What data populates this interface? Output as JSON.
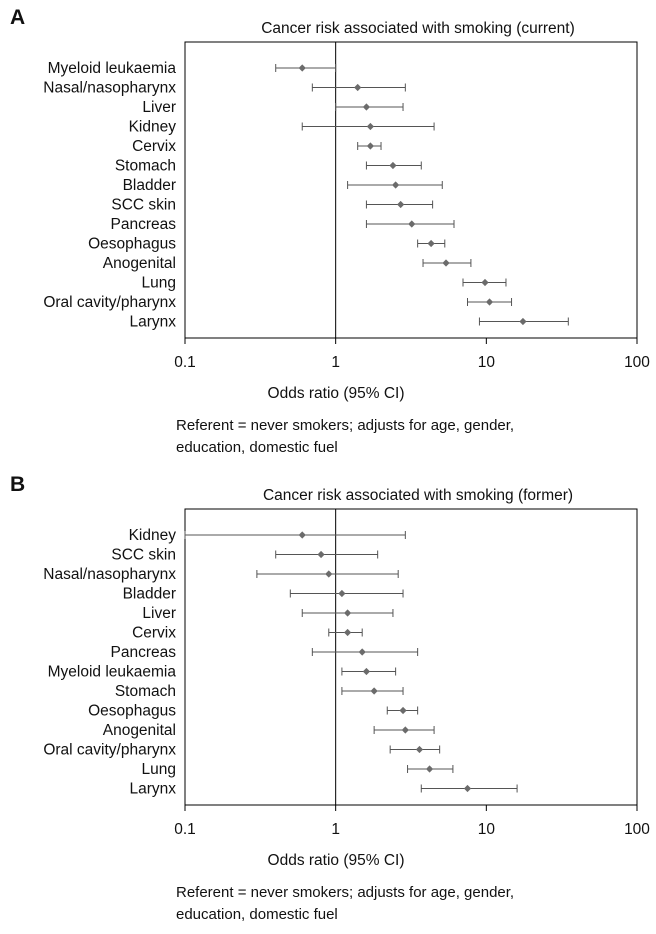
{
  "chart_data": [
    {
      "type": "scatter",
      "panel": "A",
      "title": "Cancer risk associated with smoking (current)",
      "xlabel": "Odds ratio (95% CI)",
      "note": "Referent = never smokers; adjusts for age, gender, education, domestic fuel",
      "xscale": "log",
      "xlim": [
        0.1,
        100
      ],
      "xticks": [
        0.1,
        1,
        10,
        100
      ],
      "xtick_labels": [
        "0.1",
        "1",
        "10",
        "100"
      ],
      "reference_line": 1,
      "categories": [
        "Myeloid leukaemia",
        "Nasal/nasopharynx",
        "Liver",
        "Kidney",
        "Cervix",
        "Stomach",
        "Bladder",
        "SCC skin",
        "Pancreas",
        "Oesophagus",
        "Anogenital",
        "Lung",
        "Oral cavity/pharynx",
        "Larynx"
      ],
      "or": [
        0.6,
        1.4,
        1.6,
        1.7,
        1.7,
        2.4,
        2.5,
        2.7,
        3.2,
        4.3,
        5.4,
        9.8,
        10.5,
        17.5
      ],
      "lower": [
        0.4,
        0.7,
        1.0,
        0.6,
        1.4,
        1.6,
        1.2,
        1.6,
        1.6,
        3.5,
        3.8,
        7.0,
        7.5,
        9.0
      ],
      "upper": [
        1.0,
        2.9,
        2.8,
        4.5,
        2.0,
        3.7,
        5.1,
        4.4,
        6.1,
        5.3,
        7.9,
        13.5,
        14.7,
        35.0
      ]
    },
    {
      "type": "scatter",
      "panel": "B",
      "title": "Cancer risk associated with smoking (former)",
      "xlabel": "Odds ratio (95% CI)",
      "note": "Referent = never smokers; adjusts for age, gender, education, domestic fuel",
      "xscale": "log",
      "xlim": [
        0.1,
        100
      ],
      "xticks": [
        0.1,
        1,
        10,
        100
      ],
      "xtick_labels": [
        "0.1",
        "1",
        "10",
        "100"
      ],
      "reference_line": 1,
      "categories": [
        "Kidney",
        "SCC skin",
        "Nasal/nasopharynx",
        "Bladder",
        "Liver",
        "Cervix",
        "Pancreas",
        "Myeloid leukaemia",
        "Stomach",
        "Oesophagus",
        "Anogenital",
        "Oral cavity/pharynx",
        "Lung",
        "Larynx"
      ],
      "or": [
        0.6,
        0.8,
        0.9,
        1.1,
        1.2,
        1.2,
        1.5,
        1.6,
        1.8,
        2.8,
        2.9,
        3.6,
        4.2,
        7.5
      ],
      "lower": [
        0.1,
        0.4,
        0.3,
        0.5,
        0.6,
        0.9,
        0.7,
        1.1,
        1.1,
        2.2,
        1.8,
        2.3,
        3.0,
        3.7
      ],
      "upper": [
        2.9,
        1.9,
        2.6,
        2.8,
        2.4,
        1.5,
        3.5,
        2.5,
        2.8,
        3.5,
        4.5,
        4.9,
        6.0,
        16.0
      ]
    }
  ]
}
